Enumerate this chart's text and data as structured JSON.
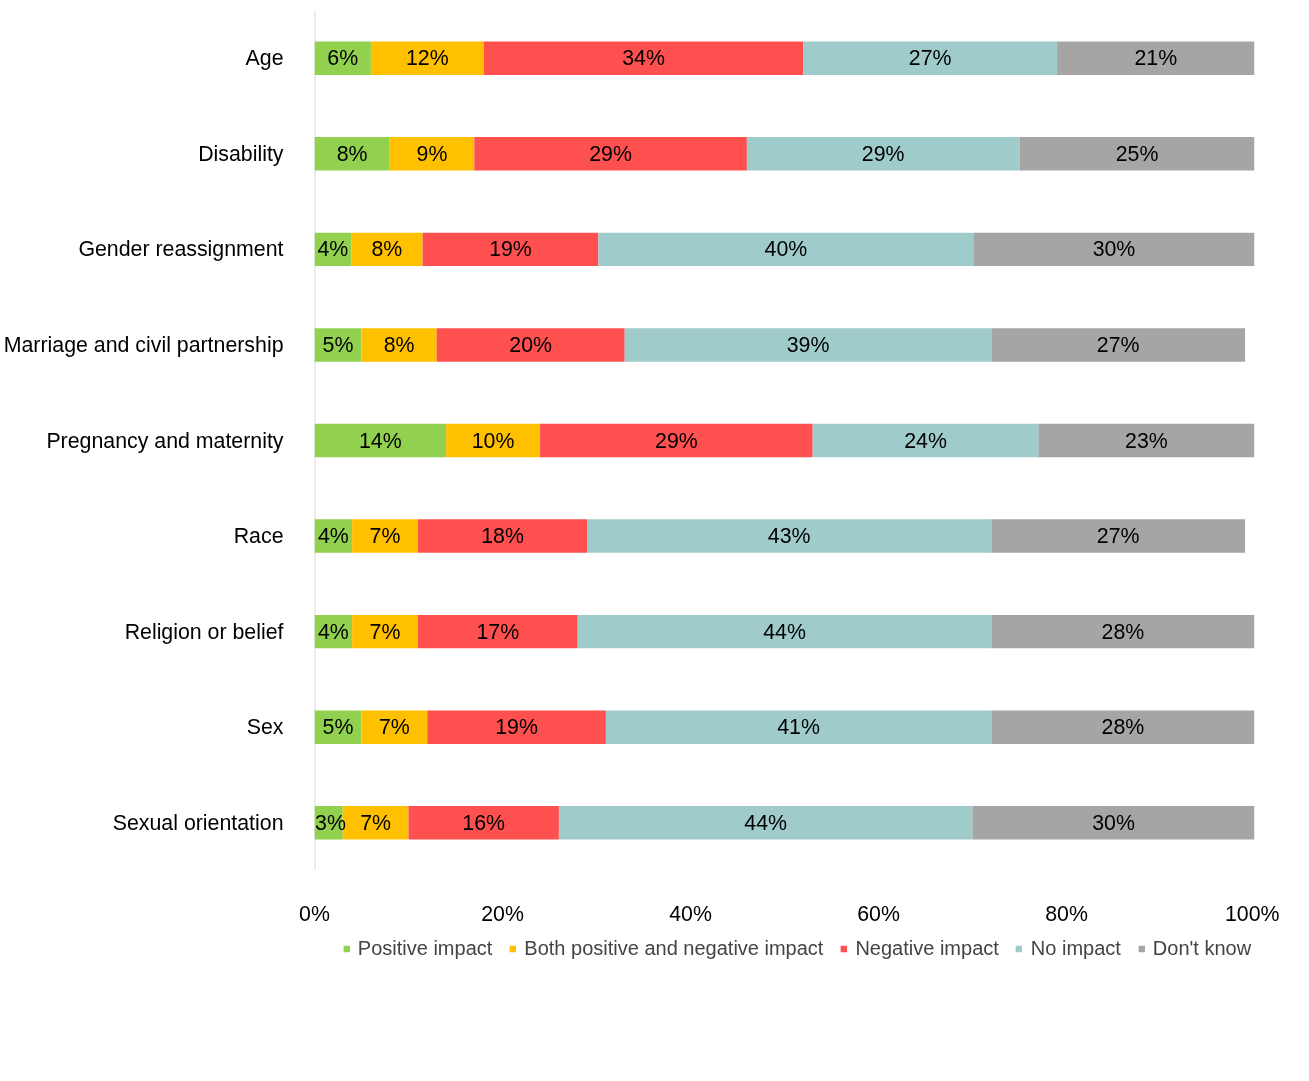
{
  "chart_data": {
    "type": "bar",
    "orientation": "horizontal",
    "stacked": true,
    "categories": [
      "Age",
      "Disability",
      "Gender reassignment",
      "Marriage and civil partnership",
      "Pregnancy and maternity",
      "Race",
      "Religion or belief",
      "Sex",
      "Sexual orientation"
    ],
    "series": [
      {
        "name": "Positive impact",
        "color": "#92d050",
        "values": [
          6,
          8,
          3.9,
          5,
          14,
          4,
          4,
          5,
          3
        ],
        "value_labels": [
          "6%",
          "8%",
          "4%",
          "5%",
          "14%",
          "4%",
          "4%",
          "5%",
          "3%"
        ]
      },
      {
        "name": "Both positive and negative impact",
        "color": "#ffc000",
        "values": [
          12,
          9,
          7.6,
          8,
          10,
          7,
          7,
          7,
          7
        ],
        "value_labels": [
          "12%",
          "9%",
          "8%",
          "8%",
          "10%",
          "7%",
          "7%",
          "7%",
          "7%"
        ]
      },
      {
        "name": "Negative impact",
        "color": "#ff5050",
        "values": [
          34,
          29,
          18.7,
          20,
          29,
          18,
          17,
          19,
          16
        ],
        "value_labels": [
          "34%",
          "29%",
          "19%",
          "20%",
          "29%",
          "18%",
          "17%",
          "19%",
          "16%"
        ]
      },
      {
        "name": "No impact",
        "color": "#a0cbcb",
        "values": [
          27,
          29,
          39.9,
          39,
          24,
          43,
          44,
          41,
          44
        ],
        "value_labels": [
          "27%",
          "29%",
          "40%",
          "39%",
          "24%",
          "43%",
          "44%",
          "41%",
          "44%"
        ]
      },
      {
        "name": "Don't know",
        "color": "#a5a5a5",
        "values": [
          21,
          25,
          29.9,
          27,
          23,
          27,
          28,
          28,
          30
        ],
        "value_labels": [
          "21%",
          "25%",
          "30%",
          "27%",
          "23%",
          "27%",
          "28%",
          "28%",
          "30%"
        ]
      }
    ],
    "xlim": [
      0,
      100
    ],
    "xticks": [
      {
        "value": 0,
        "label": "0%"
      },
      {
        "value": 20,
        "label": "20%"
      },
      {
        "value": 40,
        "label": "40%"
      },
      {
        "value": 60,
        "label": "60%"
      },
      {
        "value": 80,
        "label": "80%"
      },
      {
        "value": 100,
        "label": "100%"
      }
    ],
    "grid": false,
    "legend": "bottom"
  }
}
